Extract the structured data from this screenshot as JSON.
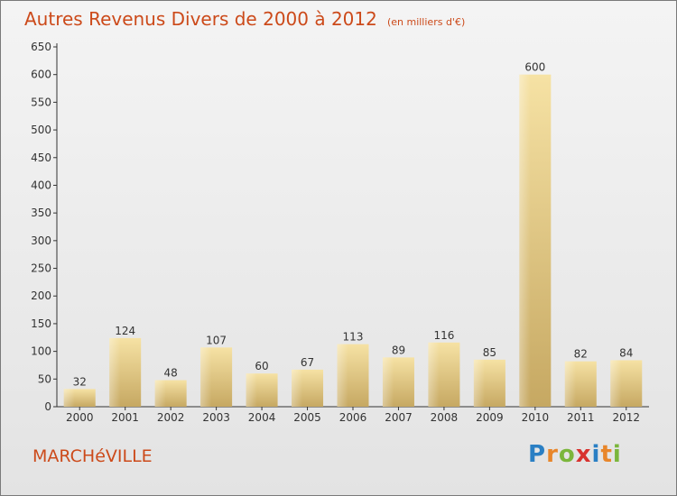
{
  "chart_data": {
    "type": "bar",
    "title": "Autres Revenus Divers de 2000 à 2012",
    "unit": "(en milliers d'€)",
    "categories": [
      "2000",
      "2001",
      "2002",
      "2003",
      "2004",
      "2005",
      "2006",
      "2007",
      "2008",
      "2009",
      "2010",
      "2011",
      "2012"
    ],
    "values": [
      32,
      124,
      48,
      107,
      60,
      67,
      113,
      89,
      116,
      85,
      600,
      82,
      84
    ],
    "ylim": [
      0,
      650
    ],
    "yticks": [
      0,
      50,
      100,
      150,
      200,
      250,
      300,
      350,
      400,
      450,
      500,
      550,
      600,
      650
    ],
    "grid": false,
    "bar_color_light": "#f4dc98",
    "bar_color_dark": "#c9aa62"
  },
  "footer": {
    "place": "MARCHéVILLE",
    "logo_letters": [
      {
        "ch": "P",
        "color": "#2a7fc4"
      },
      {
        "ch": "r",
        "color": "#e8862a"
      },
      {
        "ch": "o",
        "color": "#7bb63b"
      },
      {
        "ch": "x",
        "color": "#d8322e"
      },
      {
        "ch": "i",
        "color": "#2a7fc4"
      },
      {
        "ch": "t",
        "color": "#e8862a"
      },
      {
        "ch": "i",
        "color": "#7bb63b"
      }
    ]
  },
  "colors": {
    "title": "#cc4a1a",
    "axis": "#333333",
    "text": "#333333"
  }
}
